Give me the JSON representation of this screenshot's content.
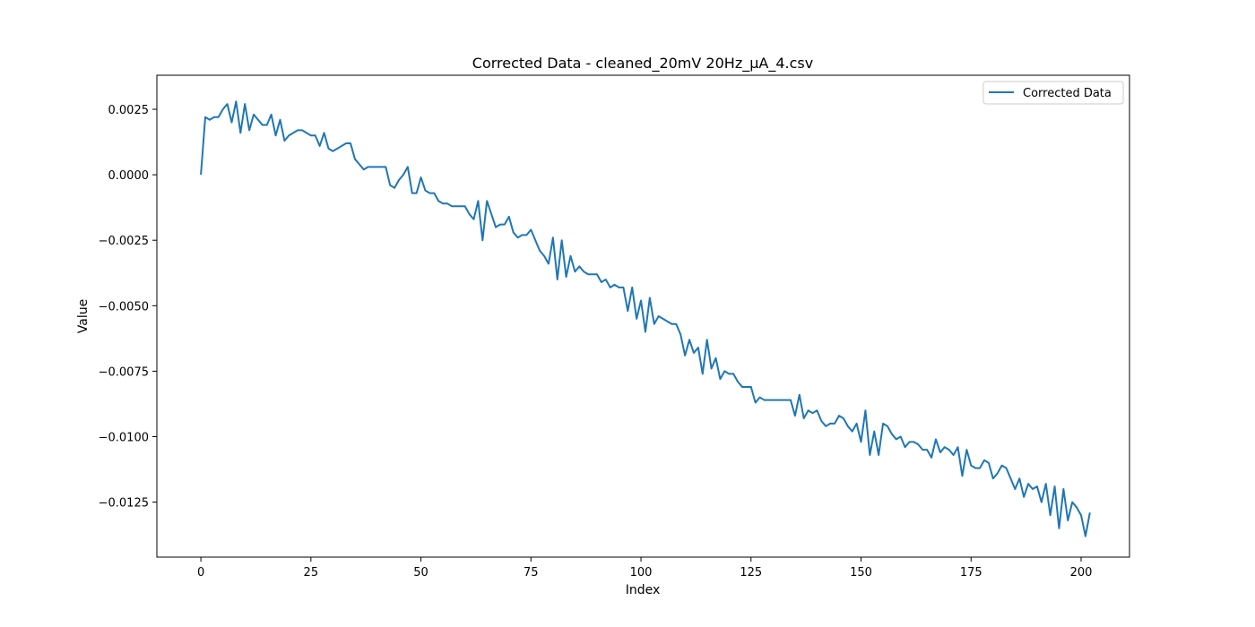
{
  "chart_data": {
    "type": "line",
    "title": "Corrected Data - cleaned_20mV 20Hz_µA_4.csv",
    "xlabel": "Index",
    "ylabel": "Value",
    "xlim": [
      -10,
      211
    ],
    "ylim": [
      -0.0146,
      0.0038
    ],
    "x_ticks": [
      0,
      25,
      50,
      75,
      100,
      125,
      150,
      175,
      200
    ],
    "x_tick_labels": [
      "0",
      "25",
      "50",
      "75",
      "100",
      "125",
      "150",
      "175",
      "200"
    ],
    "y_ticks": [
      0.0025,
      0.0,
      -0.0025,
      -0.005,
      -0.0075,
      -0.01,
      -0.0125
    ],
    "y_tick_labels": [
      "0.0025",
      "0.0000",
      "−0.0025",
      "−0.0050",
      "−0.0075",
      "−0.0100",
      "−0.0125"
    ],
    "grid": false,
    "legend": {
      "position": "top-right",
      "entries": [
        "Corrected Data"
      ]
    },
    "series": [
      {
        "name": "Corrected Data",
        "color": "#1f77b4",
        "x_start": 0,
        "x_step": 1,
        "values": [
          0.0,
          0.0022,
          0.0021,
          0.0022,
          0.0022,
          0.0025,
          0.0027,
          0.002,
          0.0028,
          0.0016,
          0.0027,
          0.0017,
          0.0023,
          0.0021,
          0.0019,
          0.0019,
          0.0023,
          0.0015,
          0.0021,
          0.0013,
          0.0015,
          0.0016,
          0.0017,
          0.0017,
          0.0016,
          0.0015,
          0.0015,
          0.0011,
          0.0016,
          0.001,
          0.0009,
          0.001,
          0.0011,
          0.0012,
          0.0012,
          0.0006,
          0.0004,
          0.0002,
          0.0003,
          0.0003,
          0.0003,
          0.0003,
          0.0003,
          -0.0004,
          -0.0005,
          -0.0002,
          0.0,
          0.0003,
          -0.0007,
          -0.0007,
          -0.0001,
          -0.0006,
          -0.0007,
          -0.0007,
          -0.001,
          -0.0011,
          -0.0011,
          -0.0012,
          -0.0012,
          -0.0012,
          -0.0012,
          -0.0015,
          -0.0017,
          -0.001,
          -0.0025,
          -0.001,
          -0.0015,
          -0.002,
          -0.0019,
          -0.0019,
          -0.0016,
          -0.0022,
          -0.0024,
          -0.0023,
          -0.0023,
          -0.0021,
          -0.0025,
          -0.0029,
          -0.0031,
          -0.0034,
          -0.0024,
          -0.004,
          -0.0025,
          -0.0039,
          -0.0031,
          -0.0037,
          -0.0035,
          -0.0037,
          -0.0038,
          -0.0038,
          -0.0038,
          -0.0041,
          -0.004,
          -0.0043,
          -0.0042,
          -0.0043,
          -0.0043,
          -0.0052,
          -0.0043,
          -0.0055,
          -0.0048,
          -0.006,
          -0.0047,
          -0.0057,
          -0.0054,
          -0.0055,
          -0.0056,
          -0.0057,
          -0.0057,
          -0.0061,
          -0.0069,
          -0.0063,
          -0.0068,
          -0.0066,
          -0.0076,
          -0.0063,
          -0.0074,
          -0.007,
          -0.0078,
          -0.0075,
          -0.0076,
          -0.0076,
          -0.0079,
          -0.0081,
          -0.0081,
          -0.0081,
          -0.0087,
          -0.0085,
          -0.0086,
          -0.0086,
          -0.0086,
          -0.0086,
          -0.0086,
          -0.0086,
          -0.0086,
          -0.0092,
          -0.0084,
          -0.0093,
          -0.009,
          -0.0091,
          -0.009,
          -0.0094,
          -0.0096,
          -0.0095,
          -0.0095,
          -0.0092,
          -0.0093,
          -0.0096,
          -0.0098,
          -0.0095,
          -0.0102,
          -0.009,
          -0.0107,
          -0.0098,
          -0.0107,
          -0.0095,
          -0.0096,
          -0.0099,
          -0.0101,
          -0.01,
          -0.0104,
          -0.0102,
          -0.0102,
          -0.0103,
          -0.0105,
          -0.0105,
          -0.0108,
          -0.0101,
          -0.0106,
          -0.0104,
          -0.0105,
          -0.0107,
          -0.0104,
          -0.0115,
          -0.0105,
          -0.0111,
          -0.0112,
          -0.0112,
          -0.0109,
          -0.011,
          -0.0116,
          -0.0114,
          -0.0111,
          -0.0112,
          -0.0116,
          -0.012,
          -0.0116,
          -0.0123,
          -0.0118,
          -0.012,
          -0.0119,
          -0.0125,
          -0.0118,
          -0.013,
          -0.0119,
          -0.0135,
          -0.012,
          -0.0132,
          -0.0125,
          -0.0127,
          -0.013,
          -0.0138,
          -0.0129
        ]
      }
    ]
  }
}
